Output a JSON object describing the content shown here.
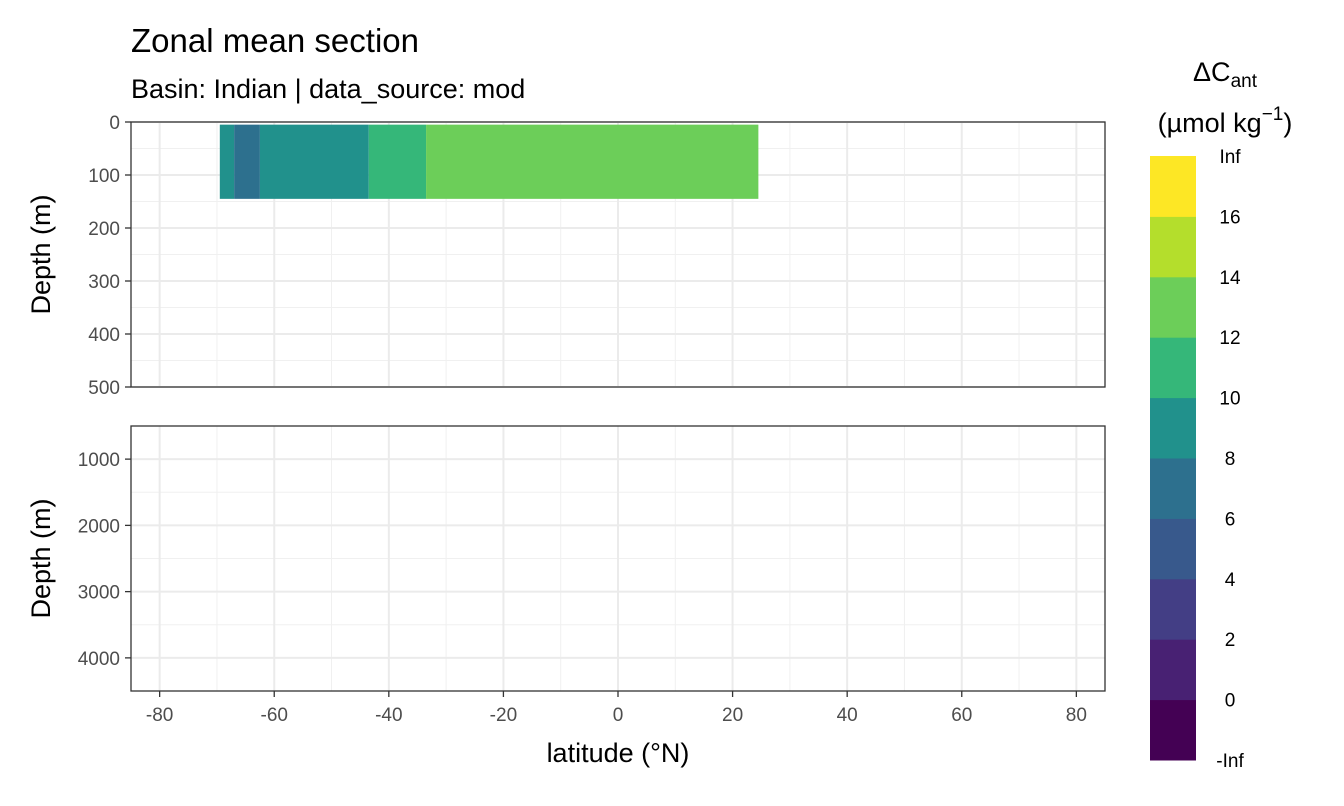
{
  "title": "Zonal mean section",
  "subtitle": "Basin: Indian | data_source: mod",
  "chart_data": {
    "type": "heatmap",
    "title": "Zonal mean section",
    "subtitle": "Basin: Indian | data_source: mod",
    "xlabel": "latitude (°N)",
    "ylabel": "Depth (m)",
    "x_range": [
      -85,
      85
    ],
    "x_ticks": [
      -80,
      -60,
      -40,
      -20,
      0,
      20,
      40,
      60,
      80
    ],
    "x_tick_labels": [
      "-80",
      "-60",
      "-40",
      "-20",
      "0",
      "20",
      "40",
      "60",
      "80"
    ],
    "grid": true,
    "panels": [
      {
        "name": "upper",
        "y_range": [
          0,
          500
        ],
        "y_reversed": true,
        "y_ticks": [
          0,
          100,
          200,
          300,
          400,
          500
        ],
        "y_tick_labels": [
          "0",
          "100",
          "200",
          "300",
          "400",
          "500"
        ],
        "cells": [
          {
            "lat_min": -69.5,
            "lat_max": -67,
            "depth_min": 5,
            "depth_max": 145,
            "bin": "8-10"
          },
          {
            "lat_min": -67,
            "lat_max": -62.5,
            "depth_min": 5,
            "depth_max": 145,
            "bin": "6-8"
          },
          {
            "lat_min": -62.5,
            "lat_max": -43.5,
            "depth_min": 5,
            "depth_max": 145,
            "bin": "8-10"
          },
          {
            "lat_min": -43.5,
            "lat_max": -33.5,
            "depth_min": 5,
            "depth_max": 145,
            "bin": "10-12"
          },
          {
            "lat_min": -33.5,
            "lat_max": 24.5,
            "depth_min": 5,
            "depth_max": 145,
            "bin": "12-14"
          }
        ]
      },
      {
        "name": "lower",
        "y_range": [
          500,
          4500
        ],
        "y_reversed": true,
        "y_ticks": [
          1000,
          2000,
          3000,
          4000
        ],
        "y_tick_labels": [
          "1000",
          "2000",
          "3000",
          "4000"
        ],
        "cells": []
      }
    ],
    "legend": {
      "title_main": "ΔC",
      "title_sub": "ant",
      "title_unit": "(µmol kg",
      "title_exp": "−1",
      "title_close": ")",
      "position": "right",
      "boundaries": [
        "-Inf",
        "0",
        "2",
        "4",
        "6",
        "8",
        "10",
        "12",
        "14",
        "16",
        "Inf"
      ],
      "bins": [
        {
          "range": "-Inf-0",
          "color": "#440154"
        },
        {
          "range": "0-2",
          "color": "#482173"
        },
        {
          "range": "2-4",
          "color": "#433E85"
        },
        {
          "range": "4-6",
          "color": "#38598C"
        },
        {
          "range": "6-8",
          "color": "#2D708E"
        },
        {
          "range": "8-10",
          "color": "#21918C"
        },
        {
          "range": "10-12",
          "color": "#35B779"
        },
        {
          "range": "12-14",
          "color": "#6CCE59"
        },
        {
          "range": "14-16",
          "color": "#B4DE2C"
        },
        {
          "range": "16-Inf",
          "color": "#FDE725"
        }
      ]
    }
  }
}
